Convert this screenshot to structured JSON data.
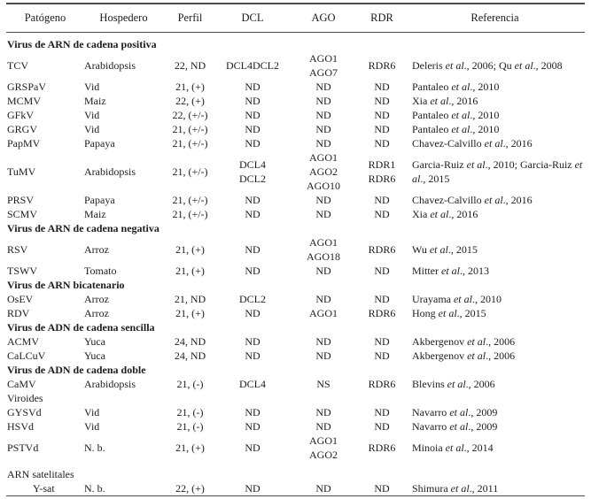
{
  "table": {
    "columns": [
      "Patógeno",
      "Hospedero",
      "Perfil",
      "DCL",
      "AGO",
      "RDR",
      "Referencia"
    ],
    "rows": [
      {
        "kind": "section",
        "label": "Virus de ARN de cadena positiva",
        "bold": "true"
      },
      {
        "kind": "data",
        "patogeno": "TCV",
        "hospedero": "Arabidopsis",
        "perfil": "22, ND",
        "dcl": "DCL4DCL2",
        "ago": "AGO1\nAGO7",
        "rdr": "RDR6",
        "ref": [
          {
            "t": "Deleris ",
            "i": 0
          },
          {
            "t": "et al",
            "i": 1
          },
          {
            "t": "., 2006; Qu ",
            "i": 0
          },
          {
            "t": "et al",
            "i": 1
          },
          {
            "t": "., 2008",
            "i": 0
          }
        ]
      },
      {
        "kind": "data",
        "patogeno": "GRSPaV",
        "hospedero": "Vid",
        "perfil": "21, (+)",
        "dcl": "ND",
        "ago": "ND",
        "rdr": "ND",
        "ref": [
          {
            "t": "Pantaleo ",
            "i": 0
          },
          {
            "t": "et al",
            "i": 1
          },
          {
            "t": "., 2010",
            "i": 0
          }
        ]
      },
      {
        "kind": "data",
        "patogeno": "MCMV",
        "hospedero": "Maiz",
        "perfil": "22, (+)",
        "dcl": "ND",
        "ago": "ND",
        "rdr": "ND",
        "ref": [
          {
            "t": "Xia ",
            "i": 0
          },
          {
            "t": "et al",
            "i": 1
          },
          {
            "t": "., 2016",
            "i": 0
          }
        ]
      },
      {
        "kind": "data",
        "patogeno": "GFkV",
        "hospedero": "Vid",
        "perfil": "22, (+/-)",
        "dcl": "ND",
        "ago": "ND",
        "rdr": "ND",
        "ref": [
          {
            "t": "Pantaleo ",
            "i": 0
          },
          {
            "t": "et al",
            "i": 1
          },
          {
            "t": "., 2010",
            "i": 0
          }
        ]
      },
      {
        "kind": "data",
        "patogeno": "GRGV",
        "hospedero": "Vid",
        "perfil": "21, (+/-)",
        "dcl": "ND",
        "ago": "ND",
        "rdr": "ND",
        "ref": [
          {
            "t": "Pantaleo ",
            "i": 0
          },
          {
            "t": "et al",
            "i": 1
          },
          {
            "t": "., 2010",
            "i": 0
          }
        ]
      },
      {
        "kind": "data",
        "patogeno": "PapMV",
        "hospedero": "Papaya",
        "perfil": "21, (+/-)",
        "dcl": "ND",
        "ago": "ND",
        "rdr": "ND",
        "ref": [
          {
            "t": "Chavez-Calvillo ",
            "i": 0
          },
          {
            "t": "et al",
            "i": 1
          },
          {
            "t": "., 2016",
            "i": 0
          }
        ]
      },
      {
        "kind": "data",
        "patogeno": "TuMV",
        "hospedero": "Arabidopsis",
        "perfil": "21, (+/-)",
        "dcl": "DCL4\nDCL2",
        "ago": "AGO1\nAGO2\nAGO10",
        "rdr": "RDR1\nRDR6",
        "ref": [
          {
            "t": "Garcia-Ruiz ",
            "i": 0
          },
          {
            "t": "et al",
            "i": 1
          },
          {
            "t": "., 2010; Garcia-Ruiz ",
            "i": 0
          },
          {
            "t": "et al",
            "i": 1
          },
          {
            "t": "., 2015",
            "i": 0
          }
        ]
      },
      {
        "kind": "data",
        "patogeno": "PRSV",
        "hospedero": "Papaya",
        "perfil": "21, (+/-)",
        "dcl": "ND",
        "ago": "ND",
        "rdr": "ND",
        "ref": [
          {
            "t": "Chavez-Calvillo ",
            "i": 0
          },
          {
            "t": "et al",
            "i": 1
          },
          {
            "t": "., 2016",
            "i": 0
          }
        ]
      },
      {
        "kind": "data",
        "patogeno": "SCMV",
        "hospedero": "Maiz",
        "perfil": "21, (+/-)",
        "dcl": "ND",
        "ago": "ND",
        "rdr": "ND",
        "ref": [
          {
            "t": "Xia ",
            "i": 0
          },
          {
            "t": "et al",
            "i": 1
          },
          {
            "t": "., 2016",
            "i": 0
          }
        ]
      },
      {
        "kind": "section",
        "label": "Virus de ARN de cadena negativa",
        "bold": "true"
      },
      {
        "kind": "data",
        "patogeno": "RSV",
        "hospedero": "Arroz",
        "perfil": "21, (+)",
        "dcl": "ND",
        "ago": "AGO1\nAGO18",
        "rdr": "RDR6",
        "ref": [
          {
            "t": "Wu ",
            "i": 0
          },
          {
            "t": "et al",
            "i": 1
          },
          {
            "t": "., 2015",
            "i": 0
          }
        ]
      },
      {
        "kind": "data",
        "patogeno": "TSWV",
        "hospedero": "Tomato",
        "perfil": "21, (+)",
        "dcl": "ND",
        "ago": "ND",
        "rdr": "ND",
        "ref": [
          {
            "t": "Mitter ",
            "i": 0
          },
          {
            "t": "et al",
            "i": 1
          },
          {
            "t": "., 2013",
            "i": 0
          }
        ]
      },
      {
        "kind": "section",
        "label": "Virus de ARN bicatenario",
        "bold": "true"
      },
      {
        "kind": "data",
        "patogeno": "OsEV",
        "hospedero": "Arroz",
        "perfil": "21, ND",
        "dcl": "DCL2",
        "ago": "ND",
        "rdr": "ND",
        "ref": [
          {
            "t": "Urayama ",
            "i": 0
          },
          {
            "t": "et al",
            "i": 1
          },
          {
            "t": "., 2010",
            "i": 0
          }
        ]
      },
      {
        "kind": "data",
        "patogeno": "RDV",
        "hospedero": "Arroz",
        "perfil": "21, (+)",
        "dcl": "ND",
        "ago": "AGO1",
        "rdr": "RDR6",
        "ref": [
          {
            "t": "Hong ",
            "i": 0
          },
          {
            "t": "et al",
            "i": 1
          },
          {
            "t": "., 2015",
            "i": 0
          }
        ]
      },
      {
        "kind": "section",
        "label": "Virus de ADN de cadena sencilla",
        "bold": "true"
      },
      {
        "kind": "data",
        "patogeno": "ACMV",
        "hospedero": "Yuca",
        "perfil": "24, ND",
        "dcl": "ND",
        "ago": "ND",
        "rdr": "ND",
        "ref": [
          {
            "t": "Akbergenov ",
            "i": 0
          },
          {
            "t": "et al",
            "i": 1
          },
          {
            "t": "., 2006",
            "i": 0
          }
        ]
      },
      {
        "kind": "data",
        "patogeno": "CaLCuV",
        "hospedero": "Yuca",
        "perfil": "24, ND",
        "dcl": "ND",
        "ago": "ND",
        "rdr": "ND",
        "ref": [
          {
            "t": "Akbergenov ",
            "i": 0
          },
          {
            "t": "et al",
            "i": 1
          },
          {
            "t": "., 2006",
            "i": 0
          }
        ]
      },
      {
        "kind": "section",
        "label": "Virus de ADN de cadena doble",
        "bold": "true"
      },
      {
        "kind": "data",
        "patogeno": "CaMV",
        "hospedero": "Arabidopsis",
        "perfil": "21, (-)",
        "dcl": "DCL4",
        "ago": "NS",
        "rdr": "RDR6",
        "ref": [
          {
            "t": "Blevins ",
            "i": 0
          },
          {
            "t": "et al",
            "i": 1
          },
          {
            "t": "., 2006",
            "i": 0
          }
        ]
      },
      {
        "kind": "section",
        "label": "Viroides",
        "bold": "false"
      },
      {
        "kind": "data",
        "patogeno": "GYSVd",
        "hospedero": "Vid",
        "perfil": "21, (-)",
        "dcl": "ND",
        "ago": "ND",
        "rdr": "ND",
        "ref": [
          {
            "t": "Navarro ",
            "i": 0
          },
          {
            "t": "et al",
            "i": 1
          },
          {
            "t": "., 2009",
            "i": 0
          }
        ]
      },
      {
        "kind": "data",
        "patogeno": "HSVd",
        "hospedero": "Vid",
        "perfil": "21, (-)",
        "dcl": "ND",
        "ago": "ND",
        "rdr": "ND",
        "ref": [
          {
            "t": "Navarro ",
            "i": 0
          },
          {
            "t": "et al",
            "i": 1
          },
          {
            "t": "., 2009",
            "i": 0
          }
        ]
      },
      {
        "kind": "data",
        "patogeno": "PSTVd",
        "hospedero": "N. b.",
        "perfil": "21, (+)",
        "dcl": "ND",
        "ago": "AGO1\nAGO2",
        "rdr": "RDR6",
        "ref": [
          {
            "t": "Minoia ",
            "i": 0
          },
          {
            "t": "et al",
            "i": 1
          },
          {
            "t": "., 2014",
            "i": 0
          }
        ]
      },
      {
        "kind": "section",
        "label": "ARN satelitales",
        "bold": "false"
      },
      {
        "kind": "data",
        "patogeno": "Y-sat",
        "hospedero": "N. b.",
        "perfil": "22, (+)",
        "dcl": "ND",
        "ago": "ND",
        "rdr": "ND",
        "ref": [
          {
            "t": "Shimura ",
            "i": 0
          },
          {
            "t": "et al",
            "i": 1
          },
          {
            "t": "., 2011",
            "i": 0
          }
        ]
      }
    ]
  }
}
